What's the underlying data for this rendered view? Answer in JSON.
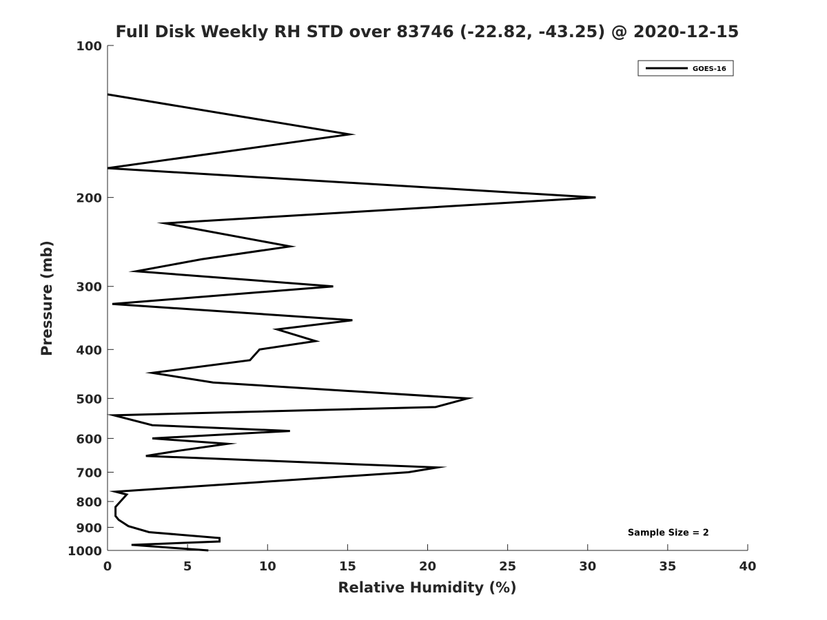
{
  "chart_data": {
    "type": "line",
    "title": "Full Disk Weekly RH STD over 83746 (-22.82, -43.25) @ 2020-12-15",
    "xlabel": "Relative Humidity (%)",
    "ylabel": "Pressure (mb)",
    "xlim": [
      0,
      40
    ],
    "ylim": [
      100,
      1000
    ],
    "y_scale": "log",
    "y_reversed": true,
    "xticks": [
      0,
      5,
      10,
      15,
      20,
      25,
      30,
      35,
      40
    ],
    "yticks": [
      100,
      200,
      300,
      400,
      500,
      600,
      700,
      800,
      900,
      1000
    ],
    "grid": false,
    "legend_position": "top-right",
    "series": [
      {
        "name": "GOES-16",
        "color": "#000000",
        "points": [
          {
            "x": 0.0,
            "y": 125
          },
          {
            "x": 15.1,
            "y": 150
          },
          {
            "x": 0.0,
            "y": 175
          },
          {
            "x": 30.5,
            "y": 200
          },
          {
            "x": 3.6,
            "y": 225
          },
          {
            "x": 11.4,
            "y": 250
          },
          {
            "x": 5.9,
            "y": 265
          },
          {
            "x": 1.8,
            "y": 280
          },
          {
            "x": 14.1,
            "y": 300
          },
          {
            "x": 0.3,
            "y": 325
          },
          {
            "x": 15.3,
            "y": 350
          },
          {
            "x": 10.6,
            "y": 365
          },
          {
            "x": 13.0,
            "y": 385
          },
          {
            "x": 9.5,
            "y": 400
          },
          {
            "x": 8.9,
            "y": 420
          },
          {
            "x": 2.8,
            "y": 445
          },
          {
            "x": 6.6,
            "y": 465
          },
          {
            "x": 22.5,
            "y": 500
          },
          {
            "x": 20.5,
            "y": 520
          },
          {
            "x": 0.4,
            "y": 540
          },
          {
            "x": 2.8,
            "y": 565
          },
          {
            "x": 11.4,
            "y": 580
          },
          {
            "x": 2.8,
            "y": 600
          },
          {
            "x": 7.5,
            "y": 615
          },
          {
            "x": 4.4,
            "y": 635
          },
          {
            "x": 2.4,
            "y": 650
          },
          {
            "x": 20.6,
            "y": 685
          },
          {
            "x": 18.8,
            "y": 700
          },
          {
            "x": 0.5,
            "y": 765
          },
          {
            "x": 1.2,
            "y": 775
          },
          {
            "x": 0.5,
            "y": 820
          },
          {
            "x": 0.5,
            "y": 855
          },
          {
            "x": 0.7,
            "y": 870
          },
          {
            "x": 1.3,
            "y": 895
          },
          {
            "x": 2.6,
            "y": 920
          },
          {
            "x": 7.0,
            "y": 945
          },
          {
            "x": 7.0,
            "y": 960
          },
          {
            "x": 1.5,
            "y": 975
          },
          {
            "x": 6.3,
            "y": 1000
          }
        ]
      }
    ],
    "annotations": [
      {
        "text": "Sample Size = 2",
        "x": 32.5,
        "y": 920
      }
    ]
  }
}
